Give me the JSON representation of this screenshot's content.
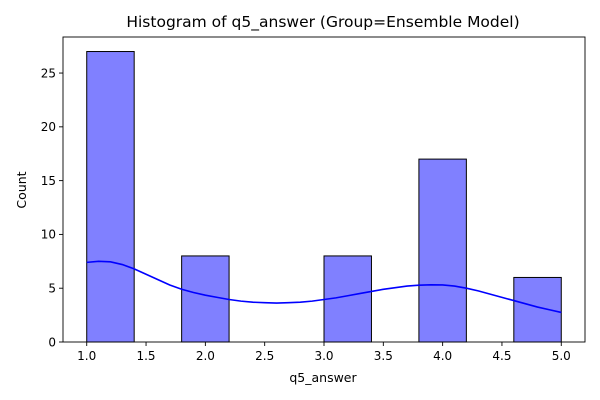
{
  "chart_data": {
    "type": "bar",
    "title": "Histogram of q5_answer (Group=Ensemble Model)",
    "xlabel": "q5_answer",
    "ylabel": "Count",
    "xlim": [
      0.8,
      5.2
    ],
    "ylim": [
      0,
      28.35
    ],
    "x_ticks": [
      "1.0",
      "1.5",
      "2.0",
      "2.5",
      "3.0",
      "3.5",
      "4.0",
      "4.5",
      "5.0"
    ],
    "y_ticks": [
      "0",
      "5",
      "10",
      "15",
      "20",
      "25"
    ],
    "bins": [
      {
        "start": 1.0,
        "end": 1.4,
        "count": 27
      },
      {
        "start": 1.4,
        "end": 1.8,
        "count": 0
      },
      {
        "start": 1.8,
        "end": 2.2,
        "count": 8
      },
      {
        "start": 2.2,
        "end": 2.6,
        "count": 0
      },
      {
        "start": 2.6,
        "end": 3.0,
        "count": 0
      },
      {
        "start": 3.0,
        "end": 3.4,
        "count": 8
      },
      {
        "start": 3.4,
        "end": 3.8,
        "count": 0
      },
      {
        "start": 3.8,
        "end": 4.2,
        "count": 17
      },
      {
        "start": 4.2,
        "end": 4.6,
        "count": 0
      },
      {
        "start": 4.6,
        "end": 5.0,
        "count": 6
      }
    ],
    "kde": {
      "x": [
        1.0,
        1.1,
        1.2,
        1.3,
        1.4,
        1.5,
        1.6,
        1.7,
        1.8,
        1.9,
        2.0,
        2.1,
        2.2,
        2.3,
        2.4,
        2.5,
        2.6,
        2.7,
        2.8,
        2.9,
        3.0,
        3.1,
        3.2,
        3.3,
        3.4,
        3.5,
        3.6,
        3.7,
        3.8,
        3.9,
        4.0,
        4.1,
        4.2,
        4.3,
        4.4,
        4.5,
        4.6,
        4.7,
        4.8,
        4.9,
        5.0
      ],
      "y": [
        7.4,
        7.5,
        7.45,
        7.2,
        6.8,
        6.3,
        5.8,
        5.3,
        4.9,
        4.6,
        4.35,
        4.15,
        3.95,
        3.8,
        3.7,
        3.65,
        3.62,
        3.65,
        3.7,
        3.8,
        3.95,
        4.1,
        4.3,
        4.5,
        4.7,
        4.9,
        5.05,
        5.2,
        5.28,
        5.32,
        5.3,
        5.2,
        5.0,
        4.75,
        4.45,
        4.15,
        3.85,
        3.55,
        3.25,
        3.0,
        2.75
      ]
    },
    "bar_color": "#8080ff",
    "bar_edge_color": "#000000",
    "kde_color": "#0000ff",
    "grid": false,
    "legend": "none"
  }
}
